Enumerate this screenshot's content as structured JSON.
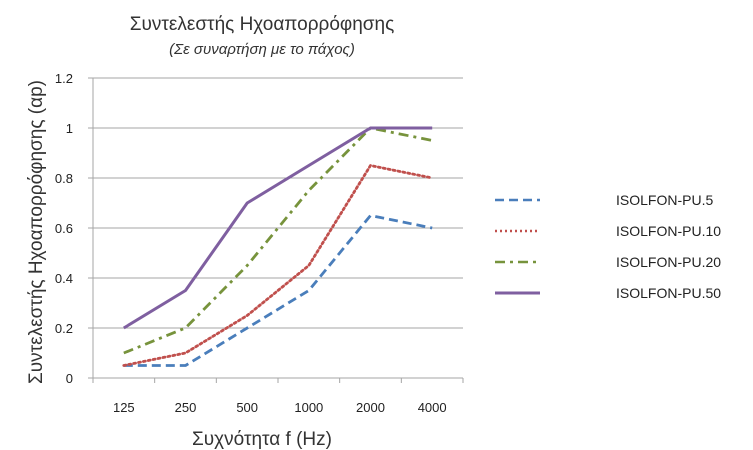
{
  "chart_data": {
    "type": "line",
    "title": "Συντελεστής Ηχοαπορρόφησης",
    "subtitle": "(Σε συναρτήση με το πάχος)",
    "xlabel": "Συχνότητα f (Hz)",
    "ylabel": "Συντελεστής Ηχοαπορρόφησης (αp)",
    "categories": [
      "125",
      "250",
      "500",
      "1000",
      "2000",
      "4000"
    ],
    "yticks": [
      "0",
      "0.2",
      "0.4",
      "0.6",
      "0.8",
      "1",
      "1.2"
    ],
    "ylim": [
      0,
      1.2
    ],
    "grid": "horizontal",
    "legend_position": "right",
    "series": [
      {
        "name": "ISOLFON-PU.5",
        "values": [
          0.05,
          0.05,
          0.2,
          0.35,
          0.65,
          0.6
        ],
        "color": "#4a7ebb",
        "style": "dashed"
      },
      {
        "name": "ISOLFON-PU.10",
        "values": [
          0.05,
          0.1,
          0.25,
          0.45,
          0.85,
          0.8
        ],
        "color": "#c0504d",
        "style": "dotted"
      },
      {
        "name": "ISOLFON-PU.20",
        "values": [
          0.1,
          0.2,
          0.45,
          0.75,
          1.0,
          0.95
        ],
        "color": "#77933c",
        "style": "dash-dot"
      },
      {
        "name": "ISOLFON-PU.50",
        "values": [
          0.2,
          0.35,
          0.7,
          0.85,
          1.0,
          1.0
        ],
        "color": "#7f5fa0",
        "style": "solid"
      }
    ]
  }
}
